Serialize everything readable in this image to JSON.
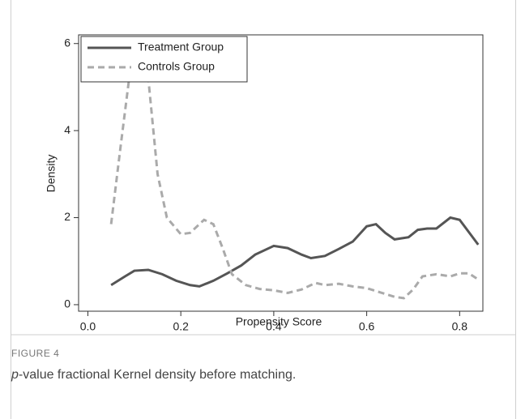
{
  "chart_data": {
    "type": "line",
    "xlabel": "Propensity Score",
    "ylabel": "Density",
    "xlim": [
      -0.02,
      0.85
    ],
    "ylim": [
      -0.15,
      6.2
    ],
    "xticks": [
      {
        "value": 0,
        "label": "0.0"
      },
      {
        "value": 0.2,
        "label": "0.2"
      },
      {
        "value": 0.4,
        "label": "0.4"
      },
      {
        "value": 0.6,
        "label": "0.6"
      },
      {
        "value": 0.8,
        "label": "0.8"
      }
    ],
    "yticks": [
      0,
      2,
      4,
      6
    ],
    "legend": "upper-left",
    "series": [
      {
        "name": "Treatment Group",
        "color": "#555555",
        "dash": false,
        "x": [
          0.05,
          0.08,
          0.1,
          0.13,
          0.16,
          0.19,
          0.22,
          0.24,
          0.27,
          0.3,
          0.33,
          0.36,
          0.4,
          0.43,
          0.46,
          0.48,
          0.51,
          0.54,
          0.57,
          0.6,
          0.62,
          0.64,
          0.66,
          0.69,
          0.71,
          0.73,
          0.75,
          0.78,
          0.8,
          0.84
        ],
        "values": [
          0.45,
          0.65,
          0.78,
          0.8,
          0.7,
          0.55,
          0.45,
          0.42,
          0.55,
          0.72,
          0.9,
          1.15,
          1.35,
          1.3,
          1.15,
          1.07,
          1.12,
          1.28,
          1.45,
          1.8,
          1.85,
          1.65,
          1.5,
          1.55,
          1.72,
          1.75,
          1.75,
          2.0,
          1.95,
          1.38
        ]
      },
      {
        "name": "Controls Group",
        "color": "#aaaaaa",
        "dash": true,
        "x": [
          0.05,
          0.07,
          0.09,
          0.11,
          0.13,
          0.15,
          0.17,
          0.2,
          0.22,
          0.25,
          0.27,
          0.29,
          0.31,
          0.34,
          0.37,
          0.4,
          0.43,
          0.46,
          0.49,
          0.51,
          0.54,
          0.57,
          0.6,
          0.63,
          0.66,
          0.68,
          0.7,
          0.72,
          0.75,
          0.78,
          0.8,
          0.82,
          0.84
        ],
        "values": [
          1.85,
          3.6,
          5.3,
          5.8,
          5.2,
          3.0,
          2.0,
          1.62,
          1.65,
          1.95,
          1.85,
          1.3,
          0.7,
          0.45,
          0.36,
          0.33,
          0.27,
          0.35,
          0.5,
          0.45,
          0.48,
          0.42,
          0.38,
          0.28,
          0.18,
          0.15,
          0.35,
          0.65,
          0.7,
          0.65,
          0.72,
          0.72,
          0.58
        ]
      }
    ],
    "figure_label": "FIGURE 4",
    "caption_italic": "p",
    "caption": "-value fractional Kernel density before matching."
  }
}
